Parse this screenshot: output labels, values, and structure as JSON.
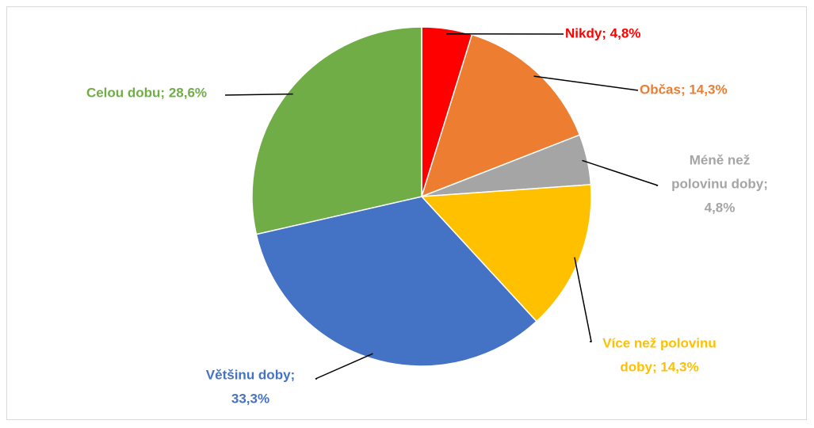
{
  "chart_data": {
    "type": "pie",
    "title": "",
    "start_angle_deg": 0,
    "direction": "clockwise",
    "legend": "none",
    "slices": [
      {
        "name": "Nikdy",
        "value": 4.8,
        "color": "#ff0000",
        "label_lines": [
          "Nikdy; 4,8%"
        ]
      },
      {
        "name": "Občas",
        "value": 14.3,
        "color": "#ed7d31",
        "label_lines": [
          "Občas; 14,3%"
        ]
      },
      {
        "name": "Méně než polovinu doby",
        "value": 4.8,
        "color": "#a5a5a5",
        "label_lines": [
          "Méně než",
          "polovinu doby;",
          "4,8%"
        ]
      },
      {
        "name": "Více než polovinu doby",
        "value": 14.3,
        "color": "#ffc000",
        "label_lines": [
          "Více než polovinu",
          "doby; 14,3%"
        ]
      },
      {
        "name": "Většinu doby",
        "value": 33.3,
        "color": "#4472c4",
        "label_lines": [
          "Většinu doby;",
          "33,3%"
        ]
      },
      {
        "name": "Celou dobu",
        "value": 28.6,
        "color": "#70ad47",
        "label_lines": [
          "Celou dobu; 28,6%"
        ]
      }
    ]
  }
}
